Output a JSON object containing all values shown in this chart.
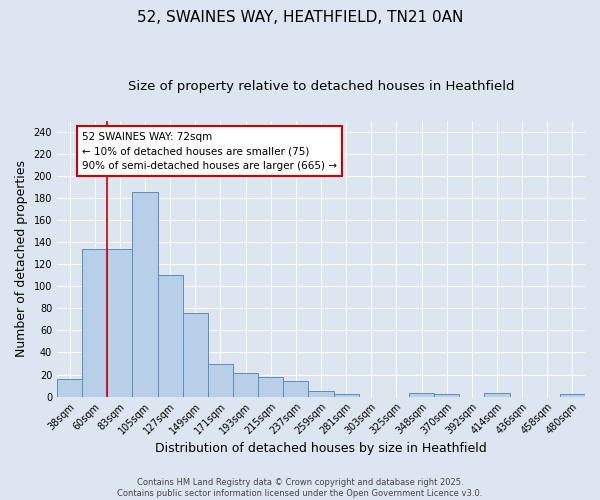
{
  "title_line1": "52, SWAINES WAY, HEATHFIELD, TN21 0AN",
  "title_line2": "Size of property relative to detached houses in Heathfield",
  "xlabel": "Distribution of detached houses by size in Heathfield",
  "ylabel": "Number of detached properties",
  "bar_labels": [
    "38sqm",
    "60sqm",
    "83sqm",
    "105sqm",
    "127sqm",
    "149sqm",
    "171sqm",
    "193sqm",
    "215sqm",
    "237sqm",
    "259sqm",
    "281sqm",
    "303sqm",
    "325sqm",
    "348sqm",
    "370sqm",
    "392sqm",
    "414sqm",
    "436sqm",
    "458sqm",
    "480sqm"
  ],
  "bar_values": [
    16,
    134,
    134,
    185,
    110,
    76,
    30,
    21,
    18,
    14,
    5,
    2,
    0,
    0,
    3,
    2,
    0,
    3,
    0,
    0,
    2
  ],
  "bar_color": "#b8cfe8",
  "bar_edge_color": "#5b8db8",
  "background_color": "#dde6f0",
  "grid_color": "#ffffff",
  "annotation_text": "52 SWAINES WAY: 72sqm\n← 10% of detached houses are smaller (75)\n90% of semi-detached houses are larger (665) →",
  "annotation_box_color": "#ffffff",
  "annotation_box_edge": "#cc0000",
  "red_line_x": 1.5,
  "ylim": [
    0,
    250
  ],
  "yticks": [
    0,
    20,
    40,
    60,
    80,
    100,
    120,
    140,
    160,
    180,
    200,
    220,
    240
  ],
  "footnote": "Contains HM Land Registry data © Crown copyright and database right 2025.\nContains public sector information licensed under the Open Government Licence v3.0.",
  "title_fontsize": 11,
  "subtitle_fontsize": 9.5,
  "tick_fontsize": 7,
  "label_fontsize": 9,
  "annot_fontsize": 7.5
}
